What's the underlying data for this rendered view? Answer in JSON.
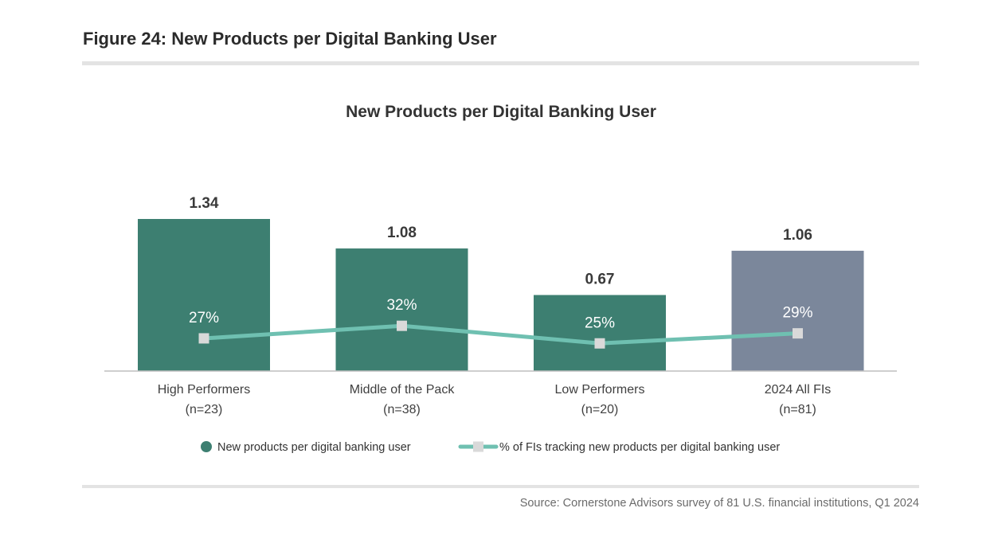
{
  "figure_title": "Figure 24: New Products per Digital Banking User",
  "source": "Source: Cornerstone Advisors survey of 81 U.S. financial institutions, Q1 2024",
  "colors": {
    "bar_primary": "#3d7f71",
    "bar_highlight": "#7b879b",
    "line": "#6fc0b1",
    "marker": "#d9d9d9",
    "axis": "#bfbfbf"
  },
  "chart_data": {
    "type": "bar",
    "title": "New Products per Digital Banking User",
    "xlabel": "",
    "ylabel": "",
    "categories": [
      {
        "name": "High Performers",
        "n": "(n=23)"
      },
      {
        "name": "Middle of the Pack",
        "n": "(n=38)"
      },
      {
        "name": "Low Performers",
        "n": "(n=20)"
      },
      {
        "name": "2024 All FIs",
        "n": "(n=81)"
      }
    ],
    "series": [
      {
        "name": "New products per digital banking user",
        "type": "bar",
        "axis": "left",
        "values": [
          1.34,
          1.08,
          0.67,
          1.06
        ],
        "labels": [
          "1.34",
          "1.08",
          "0.67",
          "1.06"
        ],
        "highlight_index": 3
      },
      {
        "name": "% of FIs tracking new products per digital banking user",
        "type": "line",
        "axis": "right",
        "values": [
          27,
          32,
          25,
          29
        ],
        "labels": [
          "27%",
          "32%",
          "25%",
          "29%"
        ]
      }
    ],
    "ylim": [
      0,
      1.34
    ],
    "y2lim": [
      0,
      100
    ],
    "grid": false,
    "legend_position": "bottom"
  }
}
